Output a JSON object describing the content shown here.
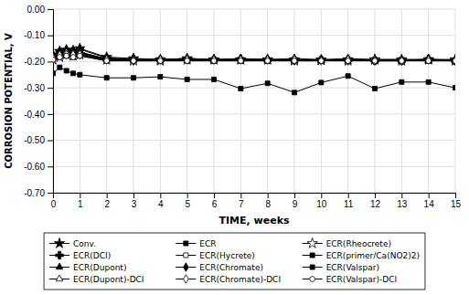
{
  "chart_data": {
    "type": "line",
    "xlabel": "TIME, weeks",
    "ylabel": "CORROSION POTENTIAL, V",
    "xlim": [
      0,
      15
    ],
    "ylim": [
      -0.7,
      0.0
    ],
    "xticks": [
      0,
      1,
      2,
      3,
      4,
      5,
      6,
      7,
      8,
      9,
      10,
      11,
      12,
      13,
      14,
      15
    ],
    "yticks": [
      {
        "value": 0.0,
        "label": "0.00"
      },
      {
        "value": -0.1,
        "label": "-0.10"
      },
      {
        "value": -0.2,
        "label": "-0.20"
      },
      {
        "value": -0.3,
        "label": "-0.30"
      },
      {
        "value": -0.4,
        "label": "-0.40"
      },
      {
        "value": -0.5,
        "label": "-0.50"
      },
      {
        "value": -0.6,
        "label": "-0.60"
      },
      {
        "value": -0.7,
        "label": "-0.70"
      }
    ],
    "grid": true,
    "legend": "bottom",
    "color": "#000000",
    "x": [
      0,
      0.25,
      0.5,
      0.75,
      1,
      2,
      3,
      4,
      5,
      6,
      7,
      8,
      9,
      10,
      11,
      12,
      13,
      14,
      15
    ],
    "series": [
      {
        "name": "Conv.",
        "marker": "star",
        "values": [
          -0.175,
          -0.16,
          -0.155,
          -0.158,
          -0.15,
          -0.183,
          -0.188,
          -0.192,
          -0.188,
          -0.192,
          -0.192,
          -0.192,
          -0.192,
          -0.195,
          -0.192,
          -0.192,
          -0.192,
          -0.192,
          -0.192
        ]
      },
      {
        "name": "ECR",
        "marker": "square",
        "values": [
          -0.185,
          -0.17,
          -0.165,
          -0.17,
          -0.165,
          -0.19,
          -0.193,
          -0.193,
          -0.193,
          -0.193,
          -0.193,
          -0.193,
          -0.193,
          -0.193,
          -0.193,
          -0.193,
          -0.193,
          -0.197,
          -0.197
        ]
      },
      {
        "name": "ECR(Rheocrete)",
        "marker": "star-open",
        "values": [
          -0.193,
          -0.183,
          -0.173,
          -0.178,
          -0.173,
          -0.193,
          -0.197,
          -0.197,
          -0.193,
          -0.193,
          -0.193,
          -0.193,
          -0.197,
          -0.193,
          -0.197,
          -0.193,
          -0.197,
          -0.193,
          -0.197
        ]
      },
      {
        "name": "ECR(DCI)",
        "marker": "plus",
        "values": [
          -0.178,
          -0.162,
          -0.157,
          -0.16,
          -0.153,
          -0.186,
          -0.19,
          -0.193,
          -0.19,
          -0.193,
          -0.19,
          -0.193,
          -0.193,
          -0.193,
          -0.193,
          -0.197,
          -0.197,
          -0.19,
          -0.197
        ]
      },
      {
        "name": "ECR(Hycrete)",
        "marker": "square-open",
        "values": [
          -0.185,
          -0.175,
          -0.17,
          -0.175,
          -0.17,
          -0.193,
          -0.193,
          -0.193,
          -0.193,
          -0.193,
          -0.193,
          -0.197,
          -0.193,
          -0.193,
          -0.193,
          -0.193,
          -0.193,
          -0.193,
          -0.197
        ]
      },
      {
        "name": "ECR(primer/Ca(NO2)2)",
        "marker": "square",
        "values": [
          -0.245,
          -0.222,
          -0.235,
          -0.245,
          -0.25,
          -0.262,
          -0.262,
          -0.258,
          -0.268,
          -0.268,
          -0.303,
          -0.283,
          -0.318,
          -0.28,
          -0.255,
          -0.303,
          -0.278,
          -0.278,
          -0.3
        ]
      },
      {
        "name": "ECR(Dupont)",
        "marker": "triangle",
        "values": [
          -0.18,
          -0.168,
          -0.162,
          -0.168,
          -0.163,
          -0.19,
          -0.193,
          -0.193,
          -0.188,
          -0.193,
          -0.188,
          -0.193,
          -0.197,
          -0.197,
          -0.193,
          -0.197,
          -0.197,
          -0.197,
          -0.197
        ]
      },
      {
        "name": "ECR(Chromate)",
        "marker": "diamond",
        "values": [
          -0.188,
          -0.178,
          -0.173,
          -0.173,
          -0.173,
          -0.193,
          -0.197,
          -0.193,
          -0.193,
          -0.193,
          -0.193,
          -0.193,
          -0.197,
          -0.193,
          -0.197,
          -0.193,
          -0.197,
          -0.193,
          -0.197
        ]
      },
      {
        "name": "ECR(Valspar)",
        "marker": "square",
        "values": [
          -0.193,
          -0.183,
          -0.178,
          -0.183,
          -0.178,
          -0.197,
          -0.197,
          -0.197,
          -0.197,
          -0.197,
          -0.197,
          -0.197,
          -0.197,
          -0.197,
          -0.197,
          -0.197,
          -0.197,
          -0.193,
          -0.197
        ]
      },
      {
        "name": "ECR(Dupont)-DCI",
        "marker": "triangle-open",
        "values": [
          -0.182,
          -0.173,
          -0.165,
          -0.17,
          -0.168,
          -0.19,
          -0.193,
          -0.193,
          -0.188,
          -0.193,
          -0.193,
          -0.193,
          -0.188,
          -0.193,
          -0.188,
          -0.193,
          -0.193,
          -0.193,
          -0.193
        ]
      },
      {
        "name": "ECR(Chromate)-DCI",
        "marker": "diamond-open",
        "values": [
          -0.188,
          -0.175,
          -0.173,
          -0.173,
          -0.173,
          -0.193,
          -0.197,
          -0.193,
          -0.193,
          -0.193,
          -0.193,
          -0.193,
          -0.193,
          -0.197,
          -0.193,
          -0.197,
          -0.197,
          -0.193,
          -0.197
        ]
      },
      {
        "name": "ECR(Valspar)-DCI",
        "marker": "circle-open",
        "values": [
          -0.193,
          -0.183,
          -0.178,
          -0.183,
          -0.178,
          -0.197,
          -0.197,
          -0.197,
          -0.197,
          -0.197,
          -0.197,
          -0.197,
          -0.197,
          -0.197,
          -0.197,
          -0.197,
          -0.197,
          -0.197,
          -0.197
        ]
      }
    ]
  }
}
